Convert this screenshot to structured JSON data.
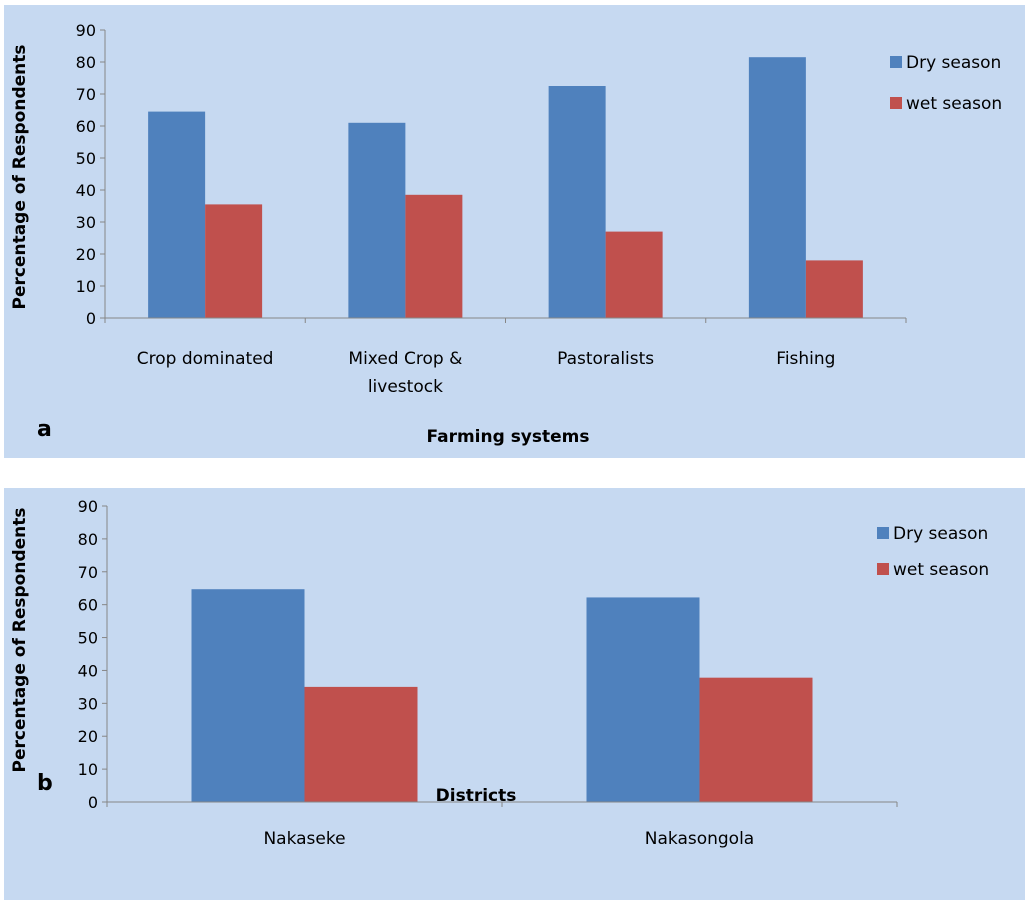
{
  "chart_data": [
    {
      "type": "bar",
      "panel_label": "a",
      "title": "",
      "xlabel": "Farming systems",
      "ylabel": "Percentage of Respondents",
      "categories": [
        "Crop dominated",
        "Mixed Crop & livestock",
        "Pastoralists",
        "Fishing"
      ],
      "series": [
        {
          "name": "Dry season",
          "color": "#4f81bd",
          "values": [
            64.5,
            61,
            72.5,
            81.5
          ]
        },
        {
          "name": "wet season",
          "color": "#c0504d",
          "values": [
            35.5,
            38.5,
            27,
            18
          ]
        }
      ],
      "ylim": [
        0,
        90
      ],
      "yticks": [
        0,
        10,
        20,
        30,
        40,
        50,
        60,
        70,
        80,
        90
      ],
      "grid": false,
      "legend": "right"
    },
    {
      "type": "bar",
      "panel_label": "b",
      "title": "",
      "xlabel": "Districts",
      "ylabel": "Percentage of Respondents",
      "categories": [
        "Nakaseke",
        "Nakasongola"
      ],
      "series": [
        {
          "name": "Dry season",
          "color": "#4f81bd",
          "values": [
            64.7,
            62.2
          ]
        },
        {
          "name": "wet season",
          "color": "#c0504d",
          "values": [
            35,
            37.8
          ]
        }
      ],
      "ylim": [
        0,
        90
      ],
      "yticks": [
        0,
        10,
        20,
        30,
        40,
        50,
        60,
        70,
        80,
        90
      ],
      "grid": false,
      "legend": "right"
    }
  ]
}
